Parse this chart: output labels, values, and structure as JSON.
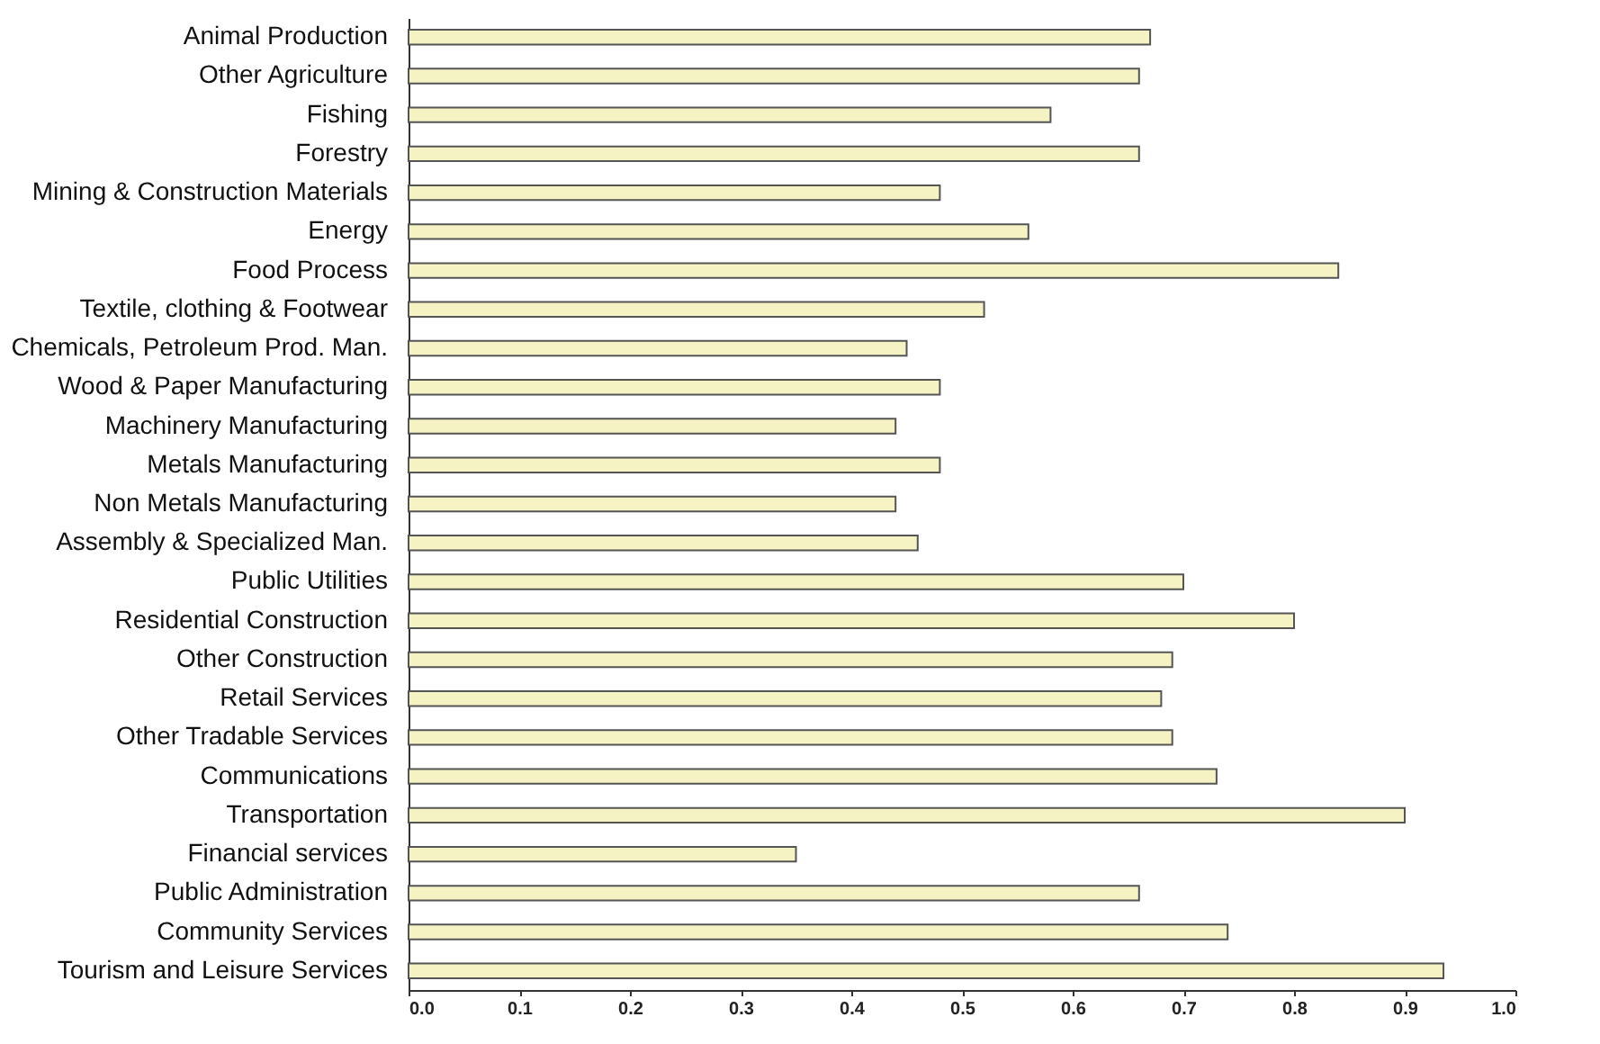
{
  "chart_data": {
    "type": "bar",
    "orientation": "horizontal",
    "categories": [
      "Animal Production",
      "Other Agriculture",
      "Fishing",
      "Forestry",
      "Mining & Construction Materials",
      "Energy",
      "Food Process",
      "Textile, clothing & Footwear",
      "Chemicals, Petroleum Prod. Man.",
      "Wood & Paper Manufacturing",
      "Machinery Manufacturing",
      "Metals Manufacturing",
      "Non Metals Manufacturing",
      "Assembly & Specialized Man.",
      "Public Utilities",
      "Residential Construction",
      "Other Construction",
      "Retail Services",
      "Other Tradable Services",
      "Communications",
      "Transportation",
      "Financial services",
      "Public Administration",
      "Community Services",
      "Tourism and Leisure Services"
    ],
    "values": [
      0.67,
      0.66,
      0.58,
      0.66,
      0.48,
      0.56,
      0.84,
      0.52,
      0.45,
      0.48,
      0.44,
      0.48,
      0.44,
      0.46,
      0.7,
      0.8,
      0.69,
      0.68,
      0.69,
      0.73,
      0.9,
      0.35,
      0.66,
      0.74,
      0.935
    ],
    "color": "#f5f2c4",
    "xlim": [
      0,
      1
    ],
    "xticks": [
      {
        "value": 0,
        "label": "0.0"
      },
      0.1,
      0.2,
      0.3,
      0.4,
      0.5,
      0.6,
      0.7,
      0.8,
      0.9,
      {
        "value": 1,
        "label": "1.0"
      }
    ],
    "grid": false
  }
}
